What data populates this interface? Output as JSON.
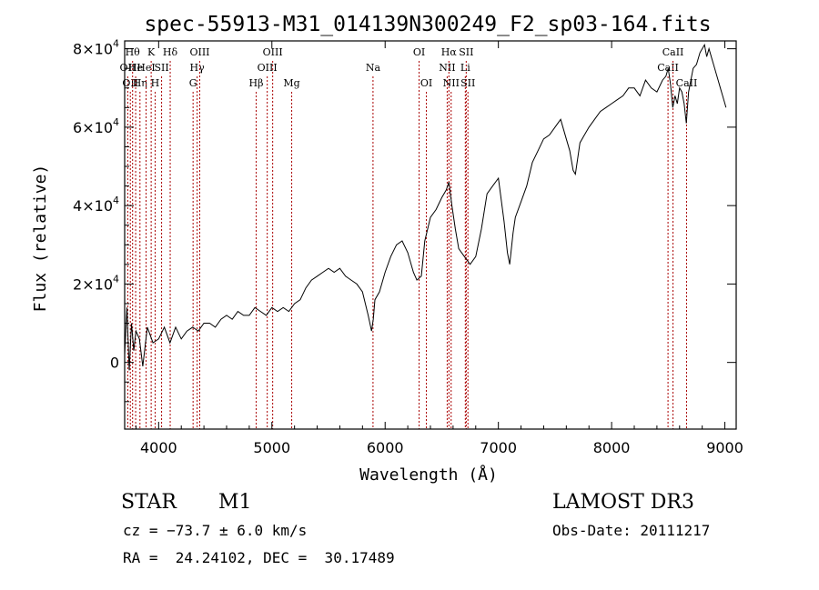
{
  "chart_data": {
    "type": "line",
    "title": "spec-55913-M31_014139N300249_F2_sp03-164.fits",
    "xlabel": "Wavelength (Å)",
    "ylabel": "Flux (relative)",
    "xlim": [
      3700,
      9100
    ],
    "ylim": [
      -17000,
      82000
    ],
    "x_ticks": [
      4000,
      5000,
      6000,
      7000,
      8000,
      9000
    ],
    "x_tick_labels": [
      "4000",
      "5000",
      "6000",
      "7000",
      "8000",
      "9000"
    ],
    "y_ticks": [
      {
        "value": 0,
        "mantissa": "0",
        "exponent": ""
      },
      {
        "value": 20000,
        "mantissa": "2×10",
        "exponent": "4"
      },
      {
        "value": 40000,
        "mantissa": "4×10",
        "exponent": "4"
      },
      {
        "value": 60000,
        "mantissa": "6×10",
        "exponent": "4"
      },
      {
        "value": 80000,
        "mantissa": "8×10",
        "exponent": "4"
      }
    ],
    "series": [
      {
        "name": "spectrum",
        "color": "#000000",
        "x": [
          3700,
          3720,
          3740,
          3760,
          3780,
          3800,
          3830,
          3860,
          3900,
          3950,
          4000,
          4050,
          4100,
          4150,
          4200,
          4250,
          4300,
          4350,
          4400,
          4450,
          4500,
          4550,
          4600,
          4650,
          4700,
          4750,
          4800,
          4850,
          4900,
          4950,
          5000,
          5050,
          5100,
          5150,
          5200,
          5250,
          5300,
          5350,
          5400,
          5450,
          5500,
          5550,
          5600,
          5650,
          5700,
          5750,
          5800,
          5850,
          5880,
          5895,
          5910,
          5950,
          6000,
          6050,
          6100,
          6150,
          6200,
          6250,
          6280,
          6320,
          6350,
          6400,
          6450,
          6500,
          6540,
          6563,
          6590,
          6620,
          6650,
          6700,
          6750,
          6800,
          6850,
          6900,
          6950,
          7000,
          7050,
          7080,
          7100,
          7130,
          7150,
          7200,
          7250,
          7300,
          7350,
          7400,
          7450,
          7500,
          7550,
          7600,
          7630,
          7660,
          7680,
          7700,
          7720,
          7760,
          7800,
          7850,
          7900,
          7950,
          8000,
          8050,
          8100,
          8150,
          8200,
          8250,
          8300,
          8350,
          8400,
          8450,
          8480,
          8500,
          8520,
          8540,
          8560,
          8580,
          8600,
          8620,
          8640,
          8660,
          8680,
          8700,
          8720,
          8750,
          8780,
          8800,
          8820,
          8840,
          8860,
          8880,
          8900,
          8920,
          8940,
          8960,
          8980,
          9000,
          9010
        ],
        "y": [
          2000,
          14000,
          -2000,
          10000,
          3000,
          8000,
          6000,
          -1000,
          9000,
          5000,
          6000,
          9000,
          5000,
          9000,
          6000,
          8000,
          9000,
          8000,
          10000,
          10000,
          9000,
          11000,
          12000,
          11000,
          13000,
          12000,
          12000,
          14000,
          13000,
          12000,
          14000,
          13000,
          14000,
          13000,
          15000,
          16000,
          19000,
          21000,
          22000,
          23000,
          24000,
          23000,
          24000,
          22000,
          21000,
          20000,
          18000,
          12000,
          8000,
          11000,
          16000,
          18000,
          23000,
          27000,
          30000,
          31000,
          28000,
          23000,
          21000,
          22000,
          31000,
          37000,
          39000,
          42000,
          44000,
          46000,
          40000,
          34000,
          29000,
          27000,
          25000,
          27000,
          34000,
          43000,
          45000,
          47000,
          36000,
          28000,
          25000,
          33000,
          37000,
          41000,
          45000,
          51000,
          54000,
          57000,
          58000,
          60000,
          62000,
          57000,
          54000,
          49000,
          48000,
          52000,
          56000,
          58000,
          60000,
          62000,
          64000,
          65000,
          66000,
          67000,
          68000,
          70000,
          70000,
          68000,
          72000,
          70000,
          69000,
          72000,
          73000,
          75000,
          71000,
          65000,
          68000,
          66000,
          70000,
          69000,
          66000,
          61000,
          69000,
          72000,
          75000,
          76000,
          79000,
          80000,
          81000,
          78000,
          80000,
          78000,
          76000,
          74000,
          72000,
          70000,
          68000,
          66000,
          65000
        ]
      }
    ],
    "line_markers": [
      {
        "x": 3727,
        "label": "OII",
        "row": 1
      },
      {
        "x": 3750,
        "label": "OII",
        "row": 2
      },
      {
        "x": 3770,
        "label": "Hθ",
        "row": 0
      },
      {
        "x": 3797,
        "label": "He",
        "row": 1
      },
      {
        "x": 3835,
        "label": "Hη",
        "row": 2
      },
      {
        "x": 3889,
        "label": "HeI",
        "row": 1
      },
      {
        "x": 3934,
        "label": "K",
        "row": 0
      },
      {
        "x": 3969,
        "label": "H",
        "row": 2
      },
      {
        "x": 4026,
        "label": "SII",
        "row": 1
      },
      {
        "x": 4102,
        "label": "Hδ",
        "row": 0
      },
      {
        "x": 4304,
        "label": "G",
        "row": 2
      },
      {
        "x": 4340,
        "label": "Hγ",
        "row": 1
      },
      {
        "x": 4363,
        "label": "OIII",
        "row": 0
      },
      {
        "x": 4861,
        "label": "Hβ",
        "row": 2
      },
      {
        "x": 4959,
        "label": "OIII",
        "row": 1
      },
      {
        "x": 5007,
        "label": "OIII",
        "row": 0
      },
      {
        "x": 5175,
        "label": "Mg",
        "row": 2
      },
      {
        "x": 5893,
        "label": "Na",
        "row": 1
      },
      {
        "x": 6300,
        "label": "OI",
        "row": 0
      },
      {
        "x": 6364,
        "label": "OI",
        "row": 2
      },
      {
        "x": 6548,
        "label": "NII",
        "row": 1
      },
      {
        "x": 6563,
        "label": "Hα",
        "row": 0
      },
      {
        "x": 6583,
        "label": "NII",
        "row": 2
      },
      {
        "x": 6708,
        "label": "Li",
        "row": 1
      },
      {
        "x": 6716,
        "label": "SII",
        "row": 0
      },
      {
        "x": 6731,
        "label": "SII",
        "row": 2
      },
      {
        "x": 8498,
        "label": "CaII",
        "row": 1
      },
      {
        "x": 8542,
        "label": "CaII",
        "row": 0
      },
      {
        "x": 8662,
        "label": "CaII",
        "row": 2
      }
    ],
    "marker_color": "#aa0000"
  },
  "info": {
    "class_label": "STAR",
    "subclass_label": "M1",
    "survey": "LAMOST DR3",
    "cz": "cz = −73.7 ± 6.0 km/s",
    "obs_date": "Obs-Date: 20111217",
    "radec": "RA =  24.24102, DEC =  30.17489"
  }
}
